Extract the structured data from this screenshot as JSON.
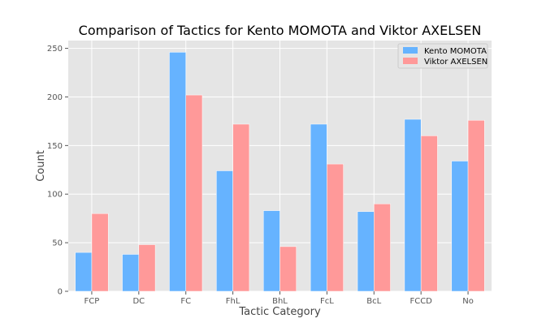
{
  "chart_data": {
    "type": "bar",
    "title": "Comparison of Tactics for Kento MOMOTA and Viktor AXELSEN",
    "xlabel": "Tactic Category",
    "ylabel": "Count",
    "categories": [
      "FCP",
      "DC",
      "FC",
      "FhL",
      "BhL",
      "FcL",
      "BcL",
      "FCCD",
      "No"
    ],
    "series": [
      {
        "name": "Kento MOMOTA",
        "color": "#66b3ff",
        "values": [
          40,
          38,
          246,
          124,
          83,
          172,
          82,
          177,
          134
        ]
      },
      {
        "name": "Viktor AXELSEN",
        "color": "#ff9999",
        "values": [
          80,
          48,
          202,
          172,
          46,
          131,
          90,
          160,
          176
        ]
      }
    ],
    "ylim": [
      0,
      258
    ],
    "yticks": [
      0,
      50,
      100,
      150,
      200,
      250
    ],
    "grid": true,
    "legend_position": "top-right",
    "background": "#e5e5e5"
  }
}
